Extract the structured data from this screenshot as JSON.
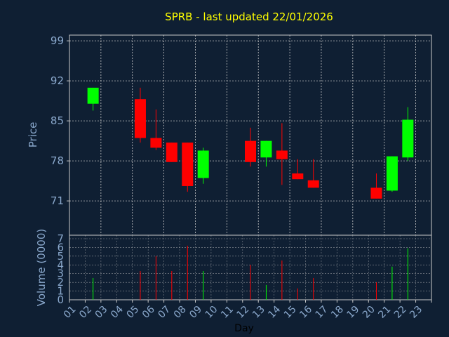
{
  "chart_data": {
    "type": "candlestick",
    "title": "SPRB - last updated 22/01/2026",
    "xlabel": "Day",
    "price_panel": {
      "ylabel": "Price",
      "ylim": [
        65,
        100
      ],
      "yticks": [
        71,
        78,
        85,
        92,
        99
      ],
      "candles": [
        {
          "day": "02",
          "open": 88.0,
          "close": 90.8,
          "high": 90.8,
          "low": 86.8
        },
        {
          "day": "05",
          "open": 88.8,
          "close": 82.0,
          "high": 90.8,
          "low": 81.2
        },
        {
          "day": "06",
          "open": 82.0,
          "close": 80.3,
          "high": 87.0,
          "low": 79.9
        },
        {
          "day": "07",
          "open": 81.2,
          "close": 77.8,
          "high": 81.2,
          "low": 77.8
        },
        {
          "day": "08",
          "open": 81.2,
          "close": 73.6,
          "high": 81.2,
          "low": 72.6
        },
        {
          "day": "09",
          "open": 75.0,
          "close": 79.8,
          "high": 80.3,
          "low": 74.0
        },
        {
          "day": "12",
          "open": 81.5,
          "close": 77.8,
          "high": 83.8,
          "low": 77.0
        },
        {
          "day": "13",
          "open": 78.6,
          "close": 81.5,
          "high": 81.5,
          "low": 77.0
        },
        {
          "day": "14",
          "open": 79.8,
          "close": 78.3,
          "high": 84.6,
          "low": 73.8
        },
        {
          "day": "15",
          "open": 75.8,
          "close": 74.8,
          "high": 78.3,
          "low": 74.8
        },
        {
          "day": "16",
          "open": 74.6,
          "close": 73.3,
          "high": 78.3,
          "low": 73.3
        },
        {
          "day": "20",
          "open": 73.3,
          "close": 71.4,
          "high": 75.8,
          "low": 71.4
        },
        {
          "day": "21",
          "open": 72.8,
          "close": 78.8,
          "high": 78.8,
          "low": 72.6
        },
        {
          "day": "22",
          "open": 78.6,
          "close": 85.2,
          "high": 87.4,
          "low": 78.0
        }
      ]
    },
    "volume_panel": {
      "ylabel": "Volume (0000)",
      "ylim": [
        0,
        7
      ],
      "yticks": [
        0,
        1,
        2,
        3,
        4,
        5,
        6,
        7
      ],
      "values": [
        {
          "day": "02",
          "volume": 2.5,
          "direction": "up"
        },
        {
          "day": "05",
          "volume": 3.3,
          "direction": "down"
        },
        {
          "day": "06",
          "volume": 5.0,
          "direction": "down"
        },
        {
          "day": "07",
          "volume": 3.3,
          "direction": "down"
        },
        {
          "day": "08",
          "volume": 6.2,
          "direction": "down"
        },
        {
          "day": "09",
          "volume": 3.3,
          "direction": "up"
        },
        {
          "day": "12",
          "volume": 4.0,
          "direction": "down"
        },
        {
          "day": "13",
          "volume": 1.7,
          "direction": "up"
        },
        {
          "day": "14",
          "volume": 4.5,
          "direction": "down"
        },
        {
          "day": "15",
          "volume": 1.3,
          "direction": "down"
        },
        {
          "day": "16",
          "volume": 2.5,
          "direction": "down"
        },
        {
          "day": "20",
          "volume": 2.0,
          "direction": "down"
        },
        {
          "day": "21",
          "volume": 3.8,
          "direction": "up"
        },
        {
          "day": "22",
          "volume": 5.9,
          "direction": "up"
        }
      ]
    },
    "x_categories": [
      "01",
      "02",
      "03",
      "04",
      "05",
      "06",
      "07",
      "08",
      "09",
      "10",
      "11",
      "12",
      "13",
      "14",
      "15",
      "16",
      "17",
      "18",
      "19",
      "20",
      "21",
      "22",
      "23"
    ],
    "grid": true,
    "colors": {
      "background": "#0f1f33",
      "up": "#00ff00",
      "down": "#ff0000",
      "grid": "#c8c8c8",
      "axis_text": "#8aa8cc",
      "title": "#ffff00",
      "xlabel": "#000000"
    }
  }
}
